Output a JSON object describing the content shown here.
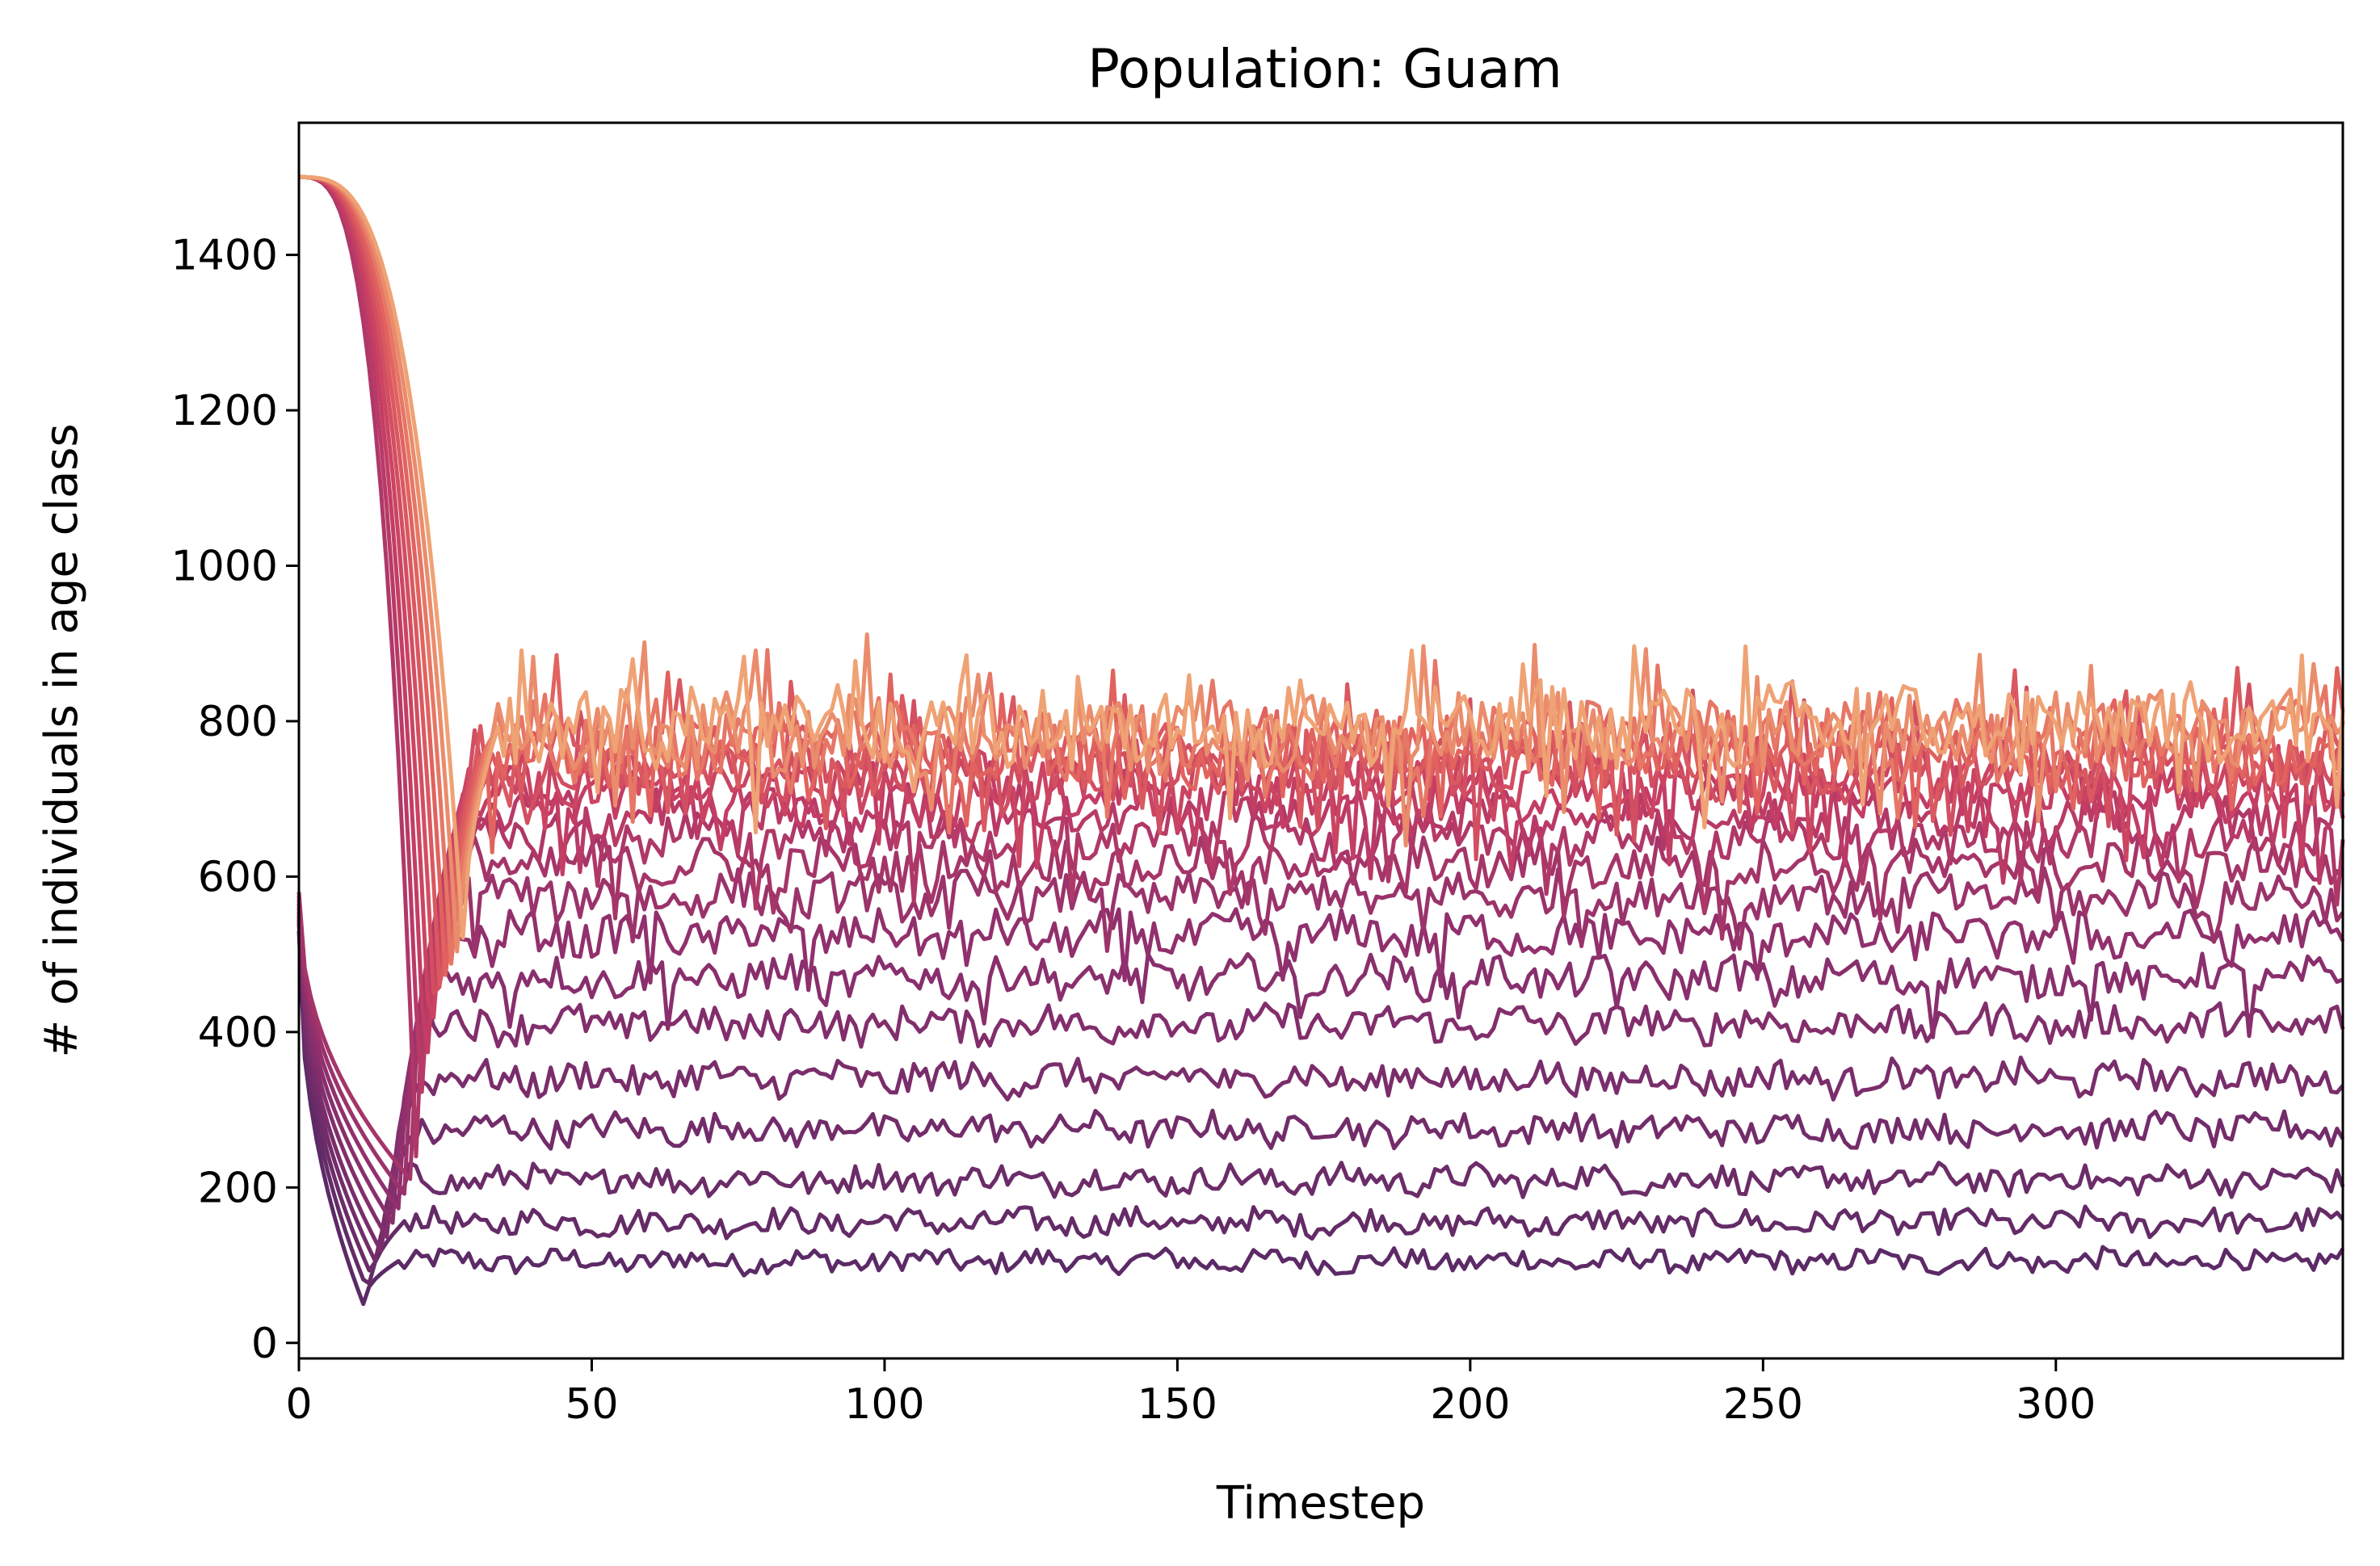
{
  "chart_data": {
    "type": "line",
    "title": "Population: Guam",
    "xlabel": "Timestep",
    "ylabel": "# of individuals in age class",
    "xlim": [
      0,
      349
    ],
    "ylim": [
      -20,
      1570
    ],
    "xticks": [
      0,
      50,
      100,
      150,
      200,
      250,
      300
    ],
    "xtick_labels": [
      "0",
      "50",
      "100",
      "150",
      "200",
      "250",
      "300"
    ],
    "yticks": [
      0,
      200,
      400,
      600,
      800,
      1000,
      1200,
      1400
    ],
    "ytick_labels": [
      "0",
      "200",
      "400",
      "600",
      "800",
      "1000",
      "1200",
      "1400"
    ],
    "grid": false,
    "legend": "none",
    "num_series": 20,
    "colormap": "flare",
    "color_low_series": "#5c2a66",
    "color_high_series": "#efa274",
    "series_summary": [
      {
        "index": 1,
        "initial": 530,
        "min_dip": 50,
        "steady_mean": 105
      },
      {
        "index": 2,
        "initial": 540,
        "min_dip": 65,
        "steady_mean": 155
      },
      {
        "index": 3,
        "initial": 545,
        "min_dip": 80,
        "steady_mean": 210
      },
      {
        "index": 4,
        "initial": 550,
        "min_dip": 95,
        "steady_mean": 275
      },
      {
        "index": 5,
        "initial": 555,
        "min_dip": 110,
        "steady_mean": 340
      },
      {
        "index": 6,
        "initial": 560,
        "min_dip": 130,
        "steady_mean": 410
      },
      {
        "index": 7,
        "initial": 565,
        "min_dip": 150,
        "steady_mean": 470
      },
      {
        "index": 8,
        "initial": 570,
        "min_dip": 170,
        "steady_mean": 525
      },
      {
        "index": 9,
        "initial": 575,
        "min_dip": 190,
        "steady_mean": 575
      },
      {
        "index": 10,
        "initial": 580,
        "min_dip": 210,
        "steady_mean": 615
      },
      {
        "index": 11,
        "initial": 1500,
        "min_dip": 240,
        "steady_mean": 650
      },
      {
        "index": 12,
        "initial": 1500,
        "min_dip": 270,
        "steady_mean": 680
      },
      {
        "index": 13,
        "initial": 1500,
        "min_dip": 300,
        "steady_mean": 705
      },
      {
        "index": 14,
        "initial": 1500,
        "min_dip": 330,
        "steady_mean": 725
      },
      {
        "index": 15,
        "initial": 1500,
        "min_dip": 360,
        "steady_mean": 740
      },
      {
        "index": 16,
        "initial": 1500,
        "min_dip": 390,
        "steady_mean": 755
      },
      {
        "index": 17,
        "initial": 1500,
        "min_dip": 420,
        "steady_mean": 765
      },
      {
        "index": 18,
        "initial": 1500,
        "min_dip": 450,
        "steady_mean": 775
      },
      {
        "index": 19,
        "initial": 1500,
        "min_dip": 480,
        "steady_mean": 785
      },
      {
        "index": 20,
        "initial": 1500,
        "min_dip": 510,
        "steady_mean": 795
      }
    ]
  }
}
